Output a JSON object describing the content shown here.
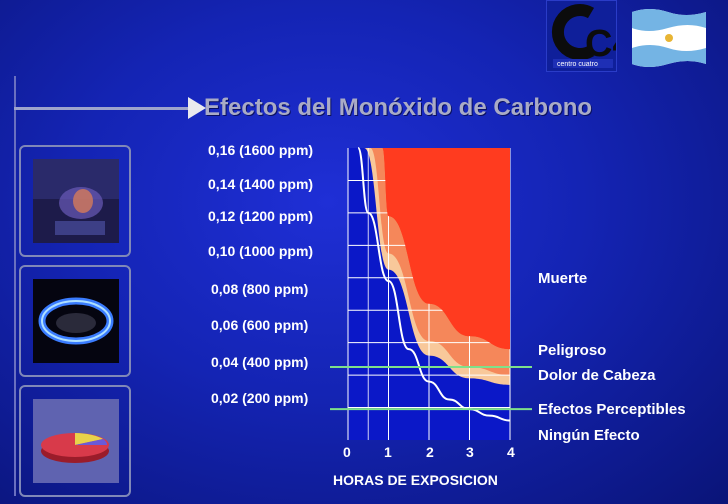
{
  "slide": {
    "title": "Efectos del Monóxido de Carbono",
    "logo_text": "centro cuatro",
    "logo_mark": "C4"
  },
  "colors": {
    "background": "#1424b4",
    "zone_muerte": "#ff3b1f",
    "zone_peligroso": "#f5875a",
    "zone_dolor": "#f8c89a",
    "limit_curve": "#ffffff",
    "threshold_line": "#7ee08a",
    "grid": "#ffffff"
  },
  "icons": {
    "thumb_1": "gas-flame-photo",
    "thumb_2": "gas-burner-ring-photo",
    "thumb_3": "pie-chart-thumbnail"
  },
  "chart_data": {
    "type": "area",
    "xlabel": "HORAS DE EXPOSICION",
    "x_ticks": [
      "0",
      "1",
      "2",
      "3",
      "4"
    ],
    "xlim": [
      0,
      4
    ],
    "y_tick_labels": [
      "0,16 (1600 ppm)",
      "0,14 (1400 ppm)",
      "0,12 (1200 ppm)",
      "0,10 (1000 ppm)",
      "0,08 (800 ppm)",
      "0,06 (600 ppm)",
      "0,04 (400 ppm)",
      "0,02 (200 ppm)"
    ],
    "y_ticks_ppm": [
      1600,
      1400,
      1200,
      1000,
      800,
      600,
      400,
      200
    ],
    "ylim_ppm": [
      0,
      1800
    ],
    "zones": [
      {
        "name": "Muerte",
        "boundary": [
          [
            0.85,
            1800
          ],
          [
            1,
            1380
          ],
          [
            2,
            840
          ],
          [
            3,
            640
          ],
          [
            4,
            560
          ]
        ]
      },
      {
        "name": "Peligroso",
        "boundary": [
          [
            0.55,
            1800
          ],
          [
            1,
            1150
          ],
          [
            2,
            610
          ],
          [
            3,
            450
          ],
          [
            4,
            400
          ]
        ]
      },
      {
        "name": "Dolor de Cabeza",
        "boundary": [
          [
            0.4,
            1800
          ],
          [
            1,
            1050
          ],
          [
            2,
            520
          ],
          [
            3,
            380
          ],
          [
            4,
            340
          ]
        ]
      }
    ],
    "limit_curve": [
      [
        0.25,
        1800
      ],
      [
        0.5,
        1400
      ],
      [
        1,
        980
      ],
      [
        1.5,
        560
      ],
      [
        2,
        360
      ],
      [
        2.5,
        250
      ],
      [
        3,
        190
      ],
      [
        3.5,
        150
      ],
      [
        4,
        120
      ]
    ],
    "threshold_lines_ppm": [
      {
        "y": 450,
        "label": "Efectos Perceptibles"
      },
      {
        "y": 190,
        "label": "Ningún Efecto"
      }
    ],
    "zone_labels": [
      "Muerte",
      "Peligroso",
      "Dolor de Cabeza",
      "Efectos Perceptibles",
      "Ningún Efecto"
    ]
  }
}
